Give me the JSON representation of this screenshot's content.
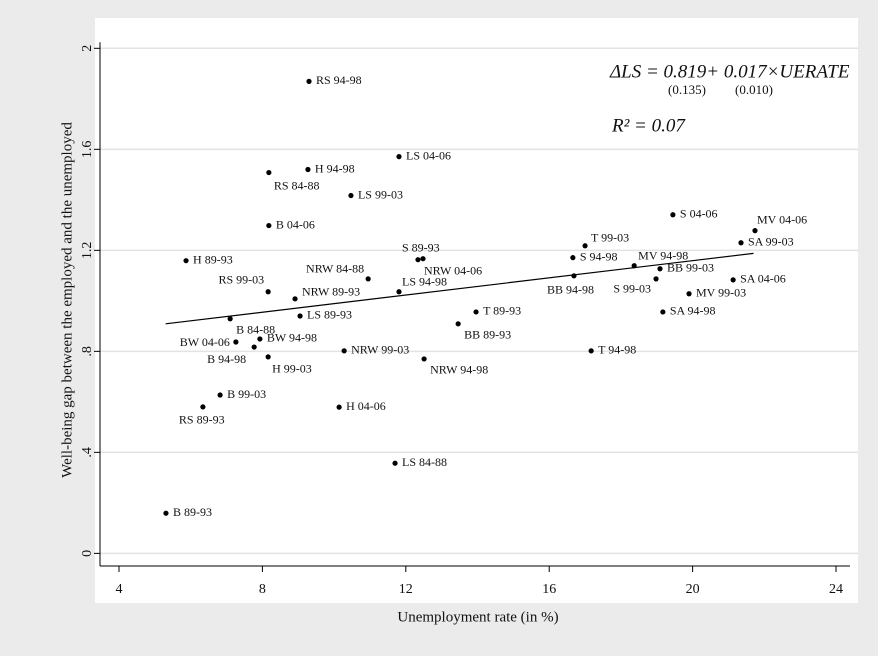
{
  "chart_data": {
    "type": "scatter",
    "x_label": "Unemployment rate (in %)",
    "y_label": "Well-being gap between the employed and the unemployed",
    "xlim": [
      3.47,
      24.39
    ],
    "ylim": [
      -0.05,
      2.12
    ],
    "xticks": [
      4,
      8,
      12,
      16,
      20,
      24
    ],
    "yticks": [
      0,
      {
        "value": 0.4,
        "label": ".4"
      },
      {
        "value": 0.8,
        "label": ".8"
      },
      1.2,
      1.6,
      2
    ],
    "grid": true,
    "color": "#000000",
    "labels": [
      "B 89-93",
      "RS 89-93",
      "B 99-03",
      "B 94-98",
      "BW 04-06",
      "BW 94-98",
      "B 84-88",
      "H 99-03",
      "RS 99-03",
      "B 04-06",
      "RS 84-88",
      "H 89-93",
      "H 94-98",
      "RS 94-98",
      "NRW 89-93",
      "LS 89-93",
      "NRW 84-88",
      "LS 99-03",
      "NRW 99-03",
      "H 04-06",
      "LS 84-88",
      "LS 04-06",
      "LS 94-98",
      "S 89-93",
      "NRW 04-06",
      "NRW 94-98",
      "BB 89-93",
      "T 89-93",
      "T 99-03",
      "S 94-98",
      "BB 94-98",
      "T 94-98",
      "S 04-06",
      "MV 94-98",
      "S 99-03",
      "BB 99-03",
      "SA 94-98",
      "MV 99-03",
      "SA 04-06",
      "SA 99-03",
      "MV 04-06"
    ],
    "x": [
      5.31,
      6.34,
      6.82,
      7.77,
      7.26,
      7.93,
      7.1,
      8.16,
      8.16,
      8.18,
      8.18,
      5.87,
      9.27,
      9.3,
      8.91,
      9.05,
      10.95,
      10.47,
      10.28,
      10.14,
      11.7,
      11.81,
      11.81,
      12.34,
      12.48,
      12.51,
      13.46,
      13.96,
      17.0,
      16.66,
      16.69,
      17.17,
      19.45,
      18.37,
      18.98,
      19.09,
      19.17,
      19.9,
      21.13,
      21.35,
      21.74
    ],
    "values": [
      0.159,
      0.58,
      0.627,
      0.817,
      0.837,
      0.849,
      0.929,
      0.778,
      1.036,
      1.298,
      1.508,
      1.159,
      1.52,
      1.869,
      1.008,
      0.94,
      1.087,
      1.417,
      0.802,
      0.579,
      0.357,
      1.571,
      1.036,
      1.163,
      1.167,
      0.77,
      0.909,
      0.956,
      1.218,
      1.171,
      1.099,
      0.802,
      1.341,
      1.139,
      1.087,
      1.127,
      0.956,
      1.028,
      1.083,
      1.23,
      1.278
    ],
    "fit_line": {
      "x": [
        5.3,
        21.7
      ],
      "y": [
        0.909,
        1.188
      ]
    },
    "equation": "ΔLS = 0.819+ 0.017×UERATE",
    "standard_errors": [
      "(0.135)",
      "(0.010)"
    ],
    "r_squared": "R² = 0.07"
  }
}
